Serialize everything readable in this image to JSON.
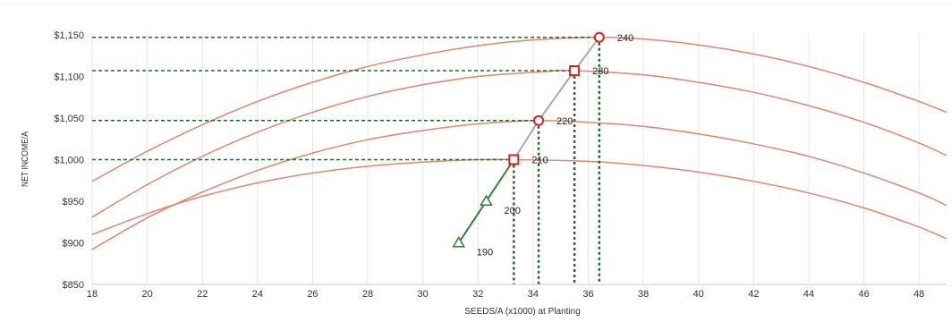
{
  "chart_data": {
    "type": "line",
    "title": "",
    "xlabel": "SEEDS/A (x1000) at Planting",
    "ylabel": "NET INCOME/A",
    "xlim": [
      18,
      49
    ],
    "ylim": [
      850,
      1150
    ],
    "x_ticks": [
      18,
      20,
      22,
      24,
      26,
      28,
      30,
      32,
      34,
      36,
      38,
      40,
      42,
      44,
      46,
      48
    ],
    "y_ticks": [
      {
        "value": 850,
        "label": "$850"
      },
      {
        "value": 900,
        "label": "$900"
      },
      {
        "value": 950,
        "label": "$950"
      },
      {
        "value": 1000,
        "label": "$1,000"
      },
      {
        "value": 1050,
        "label": "$1,050"
      },
      {
        "value": 1100,
        "label": "$1,100"
      },
      {
        "value": 1150,
        "label": "$1,150"
      }
    ],
    "grid": "vertical",
    "colors": {
      "curve": "#e0866a",
      "optimum_line": "#a9a9a9",
      "low_line": "#2e7d32",
      "guide": "#1e6b2e",
      "marker": "#dd1f1f",
      "low_marker": "#2e7d32"
    },
    "response_curves": [
      {
        "points": [
          [
            18,
            910
          ],
          [
            20,
            935
          ],
          [
            22,
            956
          ],
          [
            24,
            972
          ],
          [
            26,
            984
          ],
          [
            28,
            992
          ],
          [
            30,
            997
          ],
          [
            32,
            1000
          ],
          [
            33.3,
            1000
          ],
          [
            36,
            998
          ],
          [
            38,
            993
          ],
          [
            40,
            985
          ],
          [
            42,
            974
          ],
          [
            44,
            960
          ],
          [
            46,
            942
          ],
          [
            48,
            919
          ],
          [
            49,
            905
          ]
        ]
      },
      {
        "points": [
          [
            18,
            892
          ],
          [
            20,
            930
          ],
          [
            22,
            961
          ],
          [
            24,
            987
          ],
          [
            26,
            1008
          ],
          [
            28,
            1024
          ],
          [
            30,
            1035
          ],
          [
            32,
            1043
          ],
          [
            34.2,
            1047
          ],
          [
            36,
            1045
          ],
          [
            38,
            1040
          ],
          [
            40,
            1031
          ],
          [
            42,
            1019
          ],
          [
            44,
            1004
          ],
          [
            46,
            984
          ],
          [
            48,
            960
          ],
          [
            49,
            945
          ]
        ]
      },
      {
        "points": [
          [
            18,
            931
          ],
          [
            20,
            970
          ],
          [
            22,
            1004
          ],
          [
            24,
            1033
          ],
          [
            26,
            1057
          ],
          [
            28,
            1076
          ],
          [
            30,
            1090
          ],
          [
            32,
            1100
          ],
          [
            34,
            1105
          ],
          [
            35.5,
            1107
          ],
          [
            38,
            1102
          ],
          [
            40,
            1093
          ],
          [
            42,
            1081
          ],
          [
            44,
            1065
          ],
          [
            46,
            1045
          ],
          [
            48,
            1020
          ],
          [
            49,
            1005
          ]
        ]
      },
      {
        "points": [
          [
            18,
            974
          ],
          [
            20,
            1010
          ],
          [
            22,
            1042
          ],
          [
            24,
            1070
          ],
          [
            26,
            1093
          ],
          [
            28,
            1112
          ],
          [
            30,
            1126
          ],
          [
            32,
            1137
          ],
          [
            34,
            1144
          ],
          [
            36.4,
            1147
          ],
          [
            38,
            1145
          ],
          [
            40,
            1138
          ],
          [
            42,
            1127
          ],
          [
            44,
            1112
          ],
          [
            46,
            1093
          ],
          [
            48,
            1070
          ],
          [
            49,
            1057
          ]
        ]
      }
    ],
    "optimum_points": [
      {
        "x": 31.3,
        "y": 900,
        "label": "190",
        "marker": "triangle"
      },
      {
        "x": 32.3,
        "y": 950,
        "label": "200",
        "marker": "triangle"
      },
      {
        "x": 33.3,
        "y": 1000,
        "label": "210",
        "marker": "square"
      },
      {
        "x": 34.2,
        "y": 1047,
        "label": "220",
        "marker": "circle"
      },
      {
        "x": 35.5,
        "y": 1107,
        "label": "230",
        "marker": "square"
      },
      {
        "x": 36.4,
        "y": 1147,
        "label": "240",
        "marker": "circle"
      }
    ]
  }
}
